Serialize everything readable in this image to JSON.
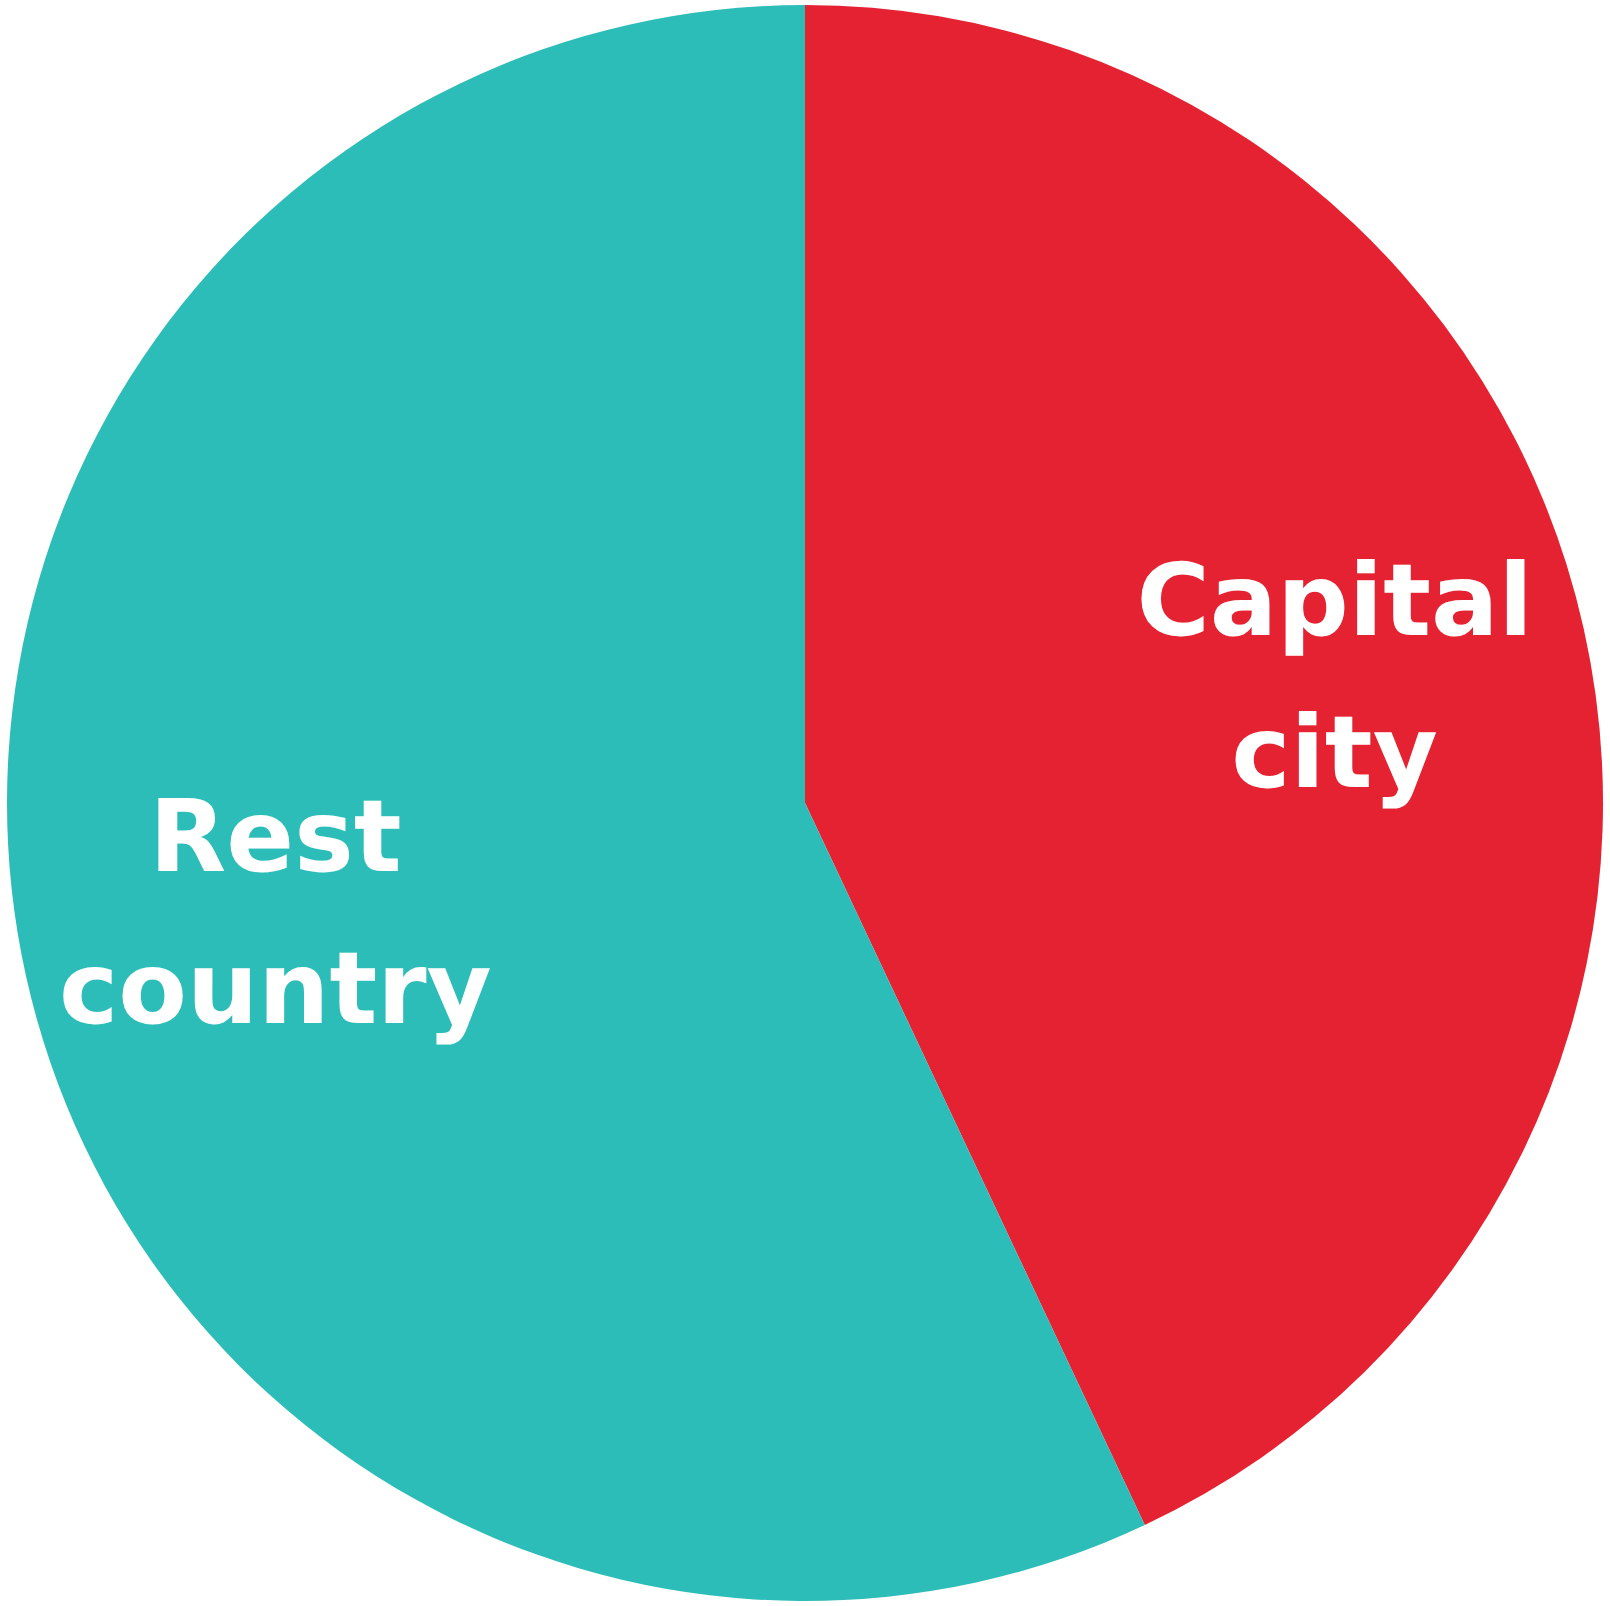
{
  "chart_data": {
    "type": "pie",
    "categories": [
      "Capital city",
      "Rest country"
    ],
    "values": [
      43,
      57
    ],
    "colors": [
      "#e52231",
      "#2dbdb8"
    ],
    "legend": false
  }
}
